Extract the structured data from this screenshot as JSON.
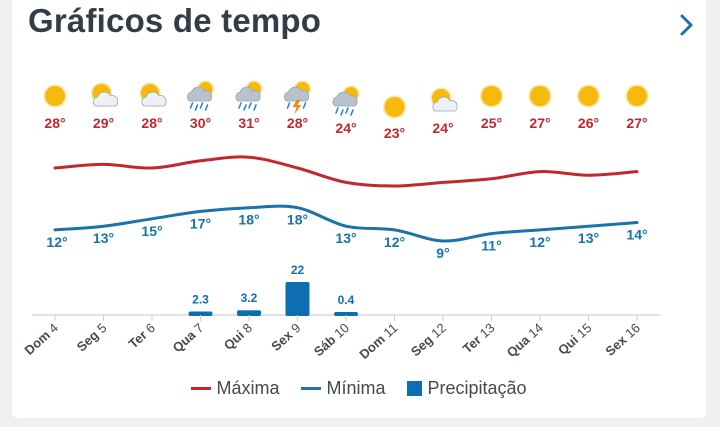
{
  "header": {
    "title": "Gráficos de tempo"
  },
  "colors": {
    "max": "#c0292b",
    "min": "#1a73a9",
    "precip": "#0e6fb0",
    "axis_text": "#444a52",
    "sun": "#f6b90e"
  },
  "chart_data": {
    "type": "line",
    "categories": [
      "Dom 4",
      "Seg 5",
      "Ter 6",
      "Qua 7",
      "Qui 8",
      "Sex 9",
      "Sáb 10",
      "Dom 11",
      "Seg 12",
      "Ter 13",
      "Qua 14",
      "Qui 15",
      "Sex 16"
    ],
    "weekday": [
      "Dom",
      "Seg",
      "Ter",
      "Qua",
      "Qui",
      "Sex",
      "Sáb",
      "Dom",
      "Seg",
      "Ter",
      "Qua",
      "Qui",
      "Sex"
    ],
    "daynum": [
      "4",
      "5",
      "6",
      "7",
      "8",
      "9",
      "10",
      "11",
      "12",
      "13",
      "14",
      "15",
      "16"
    ],
    "icons": [
      "sun-icon",
      "partly-cloudy-icon",
      "partly-cloudy-icon",
      "rain-icon",
      "rain-icon",
      "thunderstorm-icon",
      "rain-icon",
      "sun-icon",
      "partly-cloudy-icon",
      "sun-icon",
      "sun-icon",
      "sun-icon",
      "sun-icon"
    ],
    "series": [
      {
        "name": "Máxima",
        "values": [
          28,
          29,
          28,
          30,
          31,
          28,
          24,
          23,
          24,
          25,
          27,
          26,
          27
        ]
      },
      {
        "name": "Mínima",
        "values": [
          12,
          13,
          15,
          17,
          18,
          18,
          13,
          12,
          9,
          11,
          12,
          13,
          14
        ]
      },
      {
        "name": "Precipitação",
        "values": [
          0,
          0,
          0,
          2.3,
          3.2,
          22,
          0.4,
          0,
          0,
          0,
          0,
          0,
          0
        ]
      }
    ],
    "max_labels": [
      "28°",
      "29°",
      "28°",
      "30°",
      "31°",
      "28°",
      "24°",
      "23°",
      "24°",
      "25°",
      "27°",
      "26°",
      "27°"
    ],
    "min_labels": [
      "12°",
      "13°",
      "15°",
      "17°",
      "18°",
      "18°",
      "13°",
      "12°",
      "9°",
      "11°",
      "12°",
      "13°",
      "14°"
    ],
    "precip_labels": [
      "",
      "",
      "",
      "2.3",
      "3.2",
      "22",
      "0.4",
      "",
      "",
      "",
      "",
      "",
      ""
    ],
    "legend": [
      "Máxima",
      "Mínima",
      "Precipitação"
    ]
  }
}
